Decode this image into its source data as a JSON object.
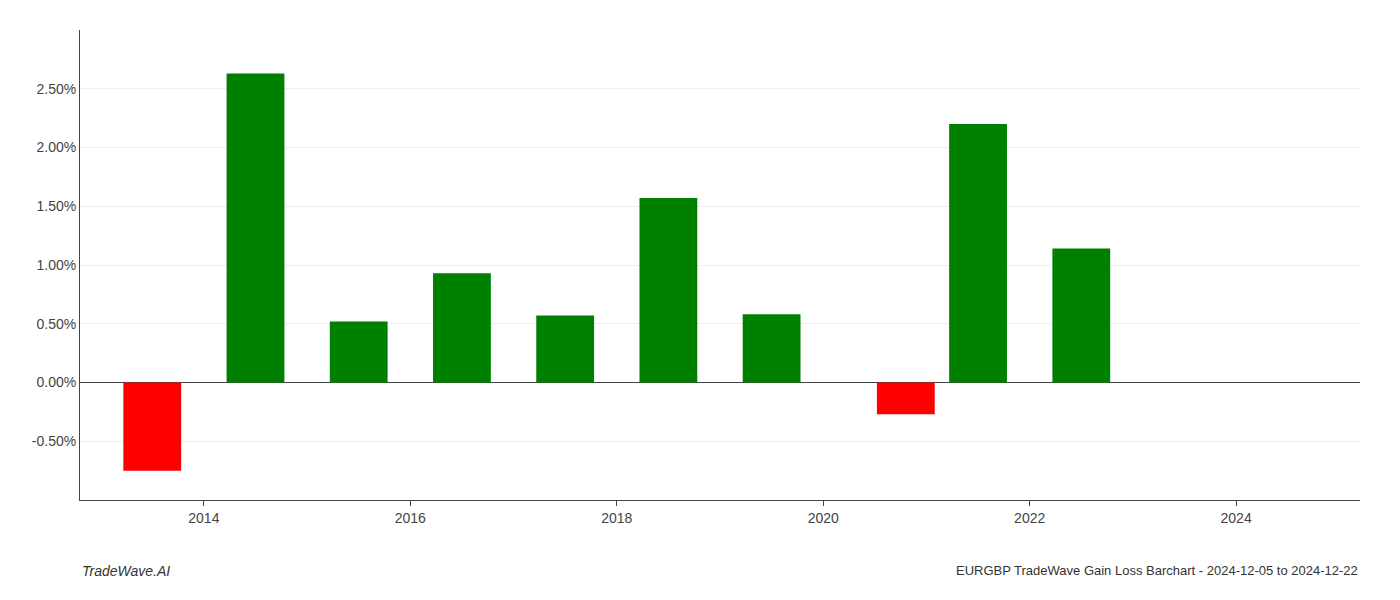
{
  "chart_data": {
    "type": "bar",
    "title": "EURGBP TradeWave Gain Loss Barchart - 2024-12-05 to 2024-12-22",
    "annotations": [
      "TradeWave.AI"
    ],
    "x": [
      2013.5,
      2014.5,
      2015.5,
      2016.5,
      2017.5,
      2018.5,
      2019.5,
      2020.8,
      2021.5,
      2022.5
    ],
    "values": [
      -0.0075,
      0.0263,
      0.0052,
      0.0093,
      0.0057,
      0.0157,
      0.0058,
      -0.0027,
      0.022,
      0.0114
    ],
    "colors": [
      "#ff0000",
      "#008000",
      "#008000",
      "#008000",
      "#008000",
      "#008000",
      "#008000",
      "#ff0000",
      "#008000",
      "#008000"
    ],
    "xlim": [
      2012.8,
      2025.2
    ],
    "xticks": [
      2014,
      2016,
      2018,
      2020,
      2022,
      2024
    ],
    "ylim": [
      -0.01,
      0.03
    ],
    "yticks": [
      {
        "value": -0.005,
        "label": "-0.50%"
      },
      {
        "value": 0.0,
        "label": "0.00%"
      },
      {
        "value": 0.005,
        "label": "0.50%"
      },
      {
        "value": 0.01,
        "label": "1.00%"
      },
      {
        "value": 0.015,
        "label": "1.50%"
      },
      {
        "value": 0.02,
        "label": "2.00%"
      },
      {
        "value": 0.025,
        "label": "2.50%"
      }
    ],
    "grid": true
  }
}
